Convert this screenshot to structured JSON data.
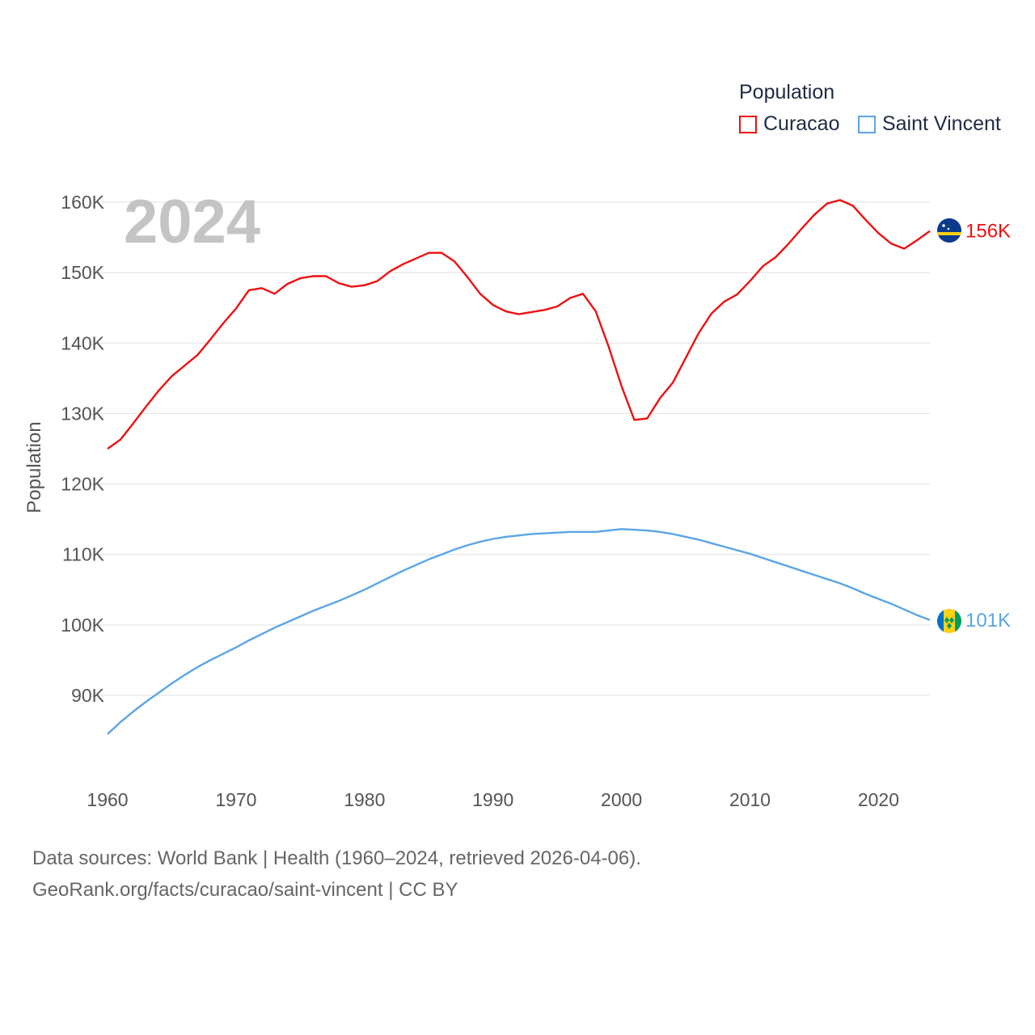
{
  "legend": {
    "title": "Population",
    "items": [
      {
        "label": "Curacao",
        "color": "#ee1111"
      },
      {
        "label": "Saint Vincent",
        "color": "#5aa5e6"
      }
    ]
  },
  "year_label": "2024",
  "sources": {
    "line1": "Data sources: World Bank | Health (1960–2024, retrieved 2026-04-06).",
    "line2": "GeoRank.org/facts/curacao/saint-vincent | CC BY"
  },
  "chart_data": {
    "type": "line",
    "title": "Population",
    "ylabel": "Population",
    "xlabel": "",
    "xlim": [
      1960,
      2024
    ],
    "ylim": [
      80000,
      165000
    ],
    "yticks": [
      90000,
      100000,
      110000,
      120000,
      130000,
      140000,
      150000,
      160000
    ],
    "ytick_labels": [
      "90K",
      "100K",
      "110K",
      "120K",
      "130K",
      "140K",
      "150K",
      "160K"
    ],
    "xticks": [
      1960,
      1970,
      1980,
      1990,
      2000,
      2010,
      2020
    ],
    "xtick_labels": [
      "1960",
      "1970",
      "1980",
      "1990",
      "2000",
      "2010",
      "2020"
    ],
    "x": [
      1960,
      1961,
      1962,
      1963,
      1964,
      1965,
      1966,
      1967,
      1968,
      1969,
      1970,
      1971,
      1972,
      1973,
      1974,
      1975,
      1976,
      1977,
      1978,
      1979,
      1980,
      1981,
      1982,
      1983,
      1984,
      1985,
      1986,
      1987,
      1988,
      1989,
      1990,
      1991,
      1992,
      1993,
      1994,
      1995,
      1996,
      1997,
      1998,
      1999,
      2000,
      2001,
      2002,
      2003,
      2004,
      2005,
      2006,
      2007,
      2008,
      2009,
      2010,
      2011,
      2012,
      2013,
      2014,
      2015,
      2016,
      2017,
      2018,
      2019,
      2020,
      2021,
      2022,
      2023,
      2024
    ],
    "series": [
      {
        "name": "Curacao",
        "color": "#ee1111",
        "end_label": "156K",
        "values": [
          125000,
          126300,
          128600,
          131000,
          133300,
          135300,
          136800,
          138300,
          140500,
          142800,
          144900,
          147500,
          147800,
          147000,
          148400,
          149200,
          149500,
          149500,
          148500,
          148000,
          148200,
          148800,
          150200,
          151200,
          152000,
          152800,
          152800,
          151600,
          149400,
          147000,
          145400,
          144500,
          144100,
          144400,
          144700,
          145200,
          146400,
          147000,
          144500,
          139500,
          133900,
          129100,
          129300,
          132200,
          134400,
          137900,
          141400,
          144200,
          145900,
          146900,
          148800,
          150900,
          152200,
          154100,
          156200,
          158200,
          159800,
          160300,
          159500,
          157500,
          155600,
          154100,
          153400,
          154600,
          155900
        ]
      },
      {
        "name": "Saint Vincent",
        "color": "#5aa5e6",
        "end_label": "101K",
        "values": [
          84500,
          86200,
          87700,
          89100,
          90400,
          91700,
          92900,
          94000,
          95000,
          95900,
          96800,
          97800,
          98700,
          99600,
          100400,
          101200,
          102000,
          102700,
          103400,
          104200,
          105000,
          105900,
          106800,
          107700,
          108500,
          109300,
          110000,
          110700,
          111300,
          111800,
          112200,
          112500,
          112700,
          112900,
          113000,
          113100,
          113200,
          113200,
          113200,
          113400,
          113600,
          113500,
          113400,
          113200,
          112900,
          112500,
          112100,
          111600,
          111100,
          110600,
          110100,
          109500,
          108900,
          108300,
          107700,
          107100,
          106500,
          105900,
          105200,
          104400,
          103700,
          103000,
          102200,
          101400,
          100700
        ]
      }
    ]
  }
}
